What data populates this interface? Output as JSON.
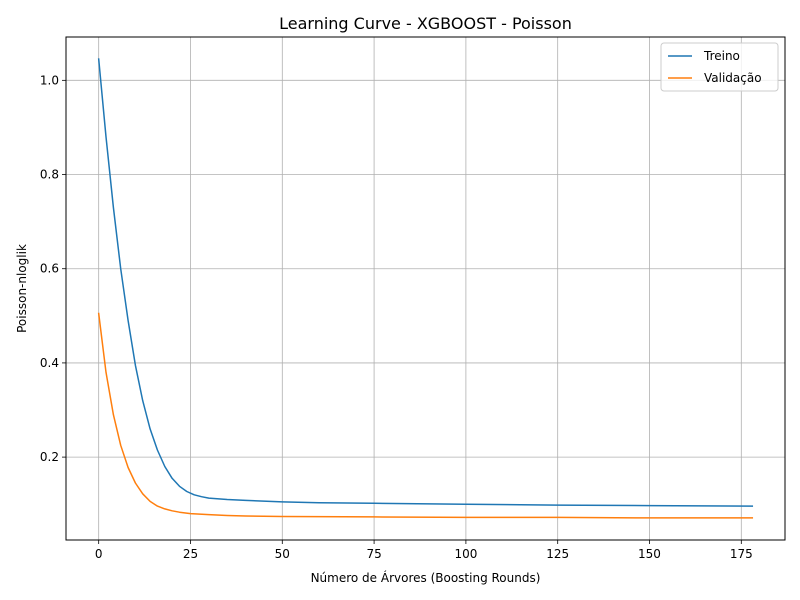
{
  "chart_data": {
    "type": "line",
    "title": "Learning Curve - XGBOOST - Poisson",
    "xlabel": "Número de Árvores (Boosting Rounds)",
    "ylabel": "Poisson-nloglik",
    "xlim": [
      -8.9,
      186.9
    ],
    "ylim": [
      0.024,
      1.092
    ],
    "xticks": [
      0,
      25,
      50,
      75,
      100,
      125,
      150,
      175
    ],
    "yticks": [
      0.2,
      0.4,
      0.6,
      0.8,
      1.0
    ],
    "xtick_labels": [
      "0",
      "25",
      "50",
      "75",
      "100",
      "125",
      "150",
      "175"
    ],
    "ytick_labels": [
      "0.2",
      "0.4",
      "0.6",
      "0.8",
      "1.0"
    ],
    "grid": true,
    "legend_position": "top-right",
    "series": [
      {
        "name": "Treino",
        "color": "#1f77b4",
        "x": [
          0,
          2,
          4,
          6,
          8,
          10,
          12,
          14,
          16,
          18,
          20,
          22,
          24,
          26,
          28,
          30,
          35,
          40,
          50,
          60,
          75,
          100,
          125,
          150,
          178
        ],
        "y": [
          1.045,
          0.88,
          0.73,
          0.6,
          0.49,
          0.395,
          0.32,
          0.26,
          0.215,
          0.18,
          0.155,
          0.138,
          0.127,
          0.12,
          0.116,
          0.113,
          0.11,
          0.108,
          0.105,
          0.103,
          0.102,
          0.1,
          0.098,
          0.097,
          0.096
        ]
      },
      {
        "name": "Validação",
        "color": "#ff7f0e",
        "x": [
          0,
          2,
          4,
          6,
          8,
          10,
          12,
          14,
          16,
          18,
          20,
          22,
          25,
          30,
          35,
          40,
          50,
          75,
          100,
          125,
          150,
          178
        ],
        "y": [
          0.505,
          0.38,
          0.29,
          0.225,
          0.178,
          0.145,
          0.122,
          0.106,
          0.096,
          0.09,
          0.086,
          0.083,
          0.08,
          0.078,
          0.076,
          0.075,
          0.074,
          0.073,
          0.072,
          0.072,
          0.071,
          0.071
        ]
      }
    ]
  }
}
